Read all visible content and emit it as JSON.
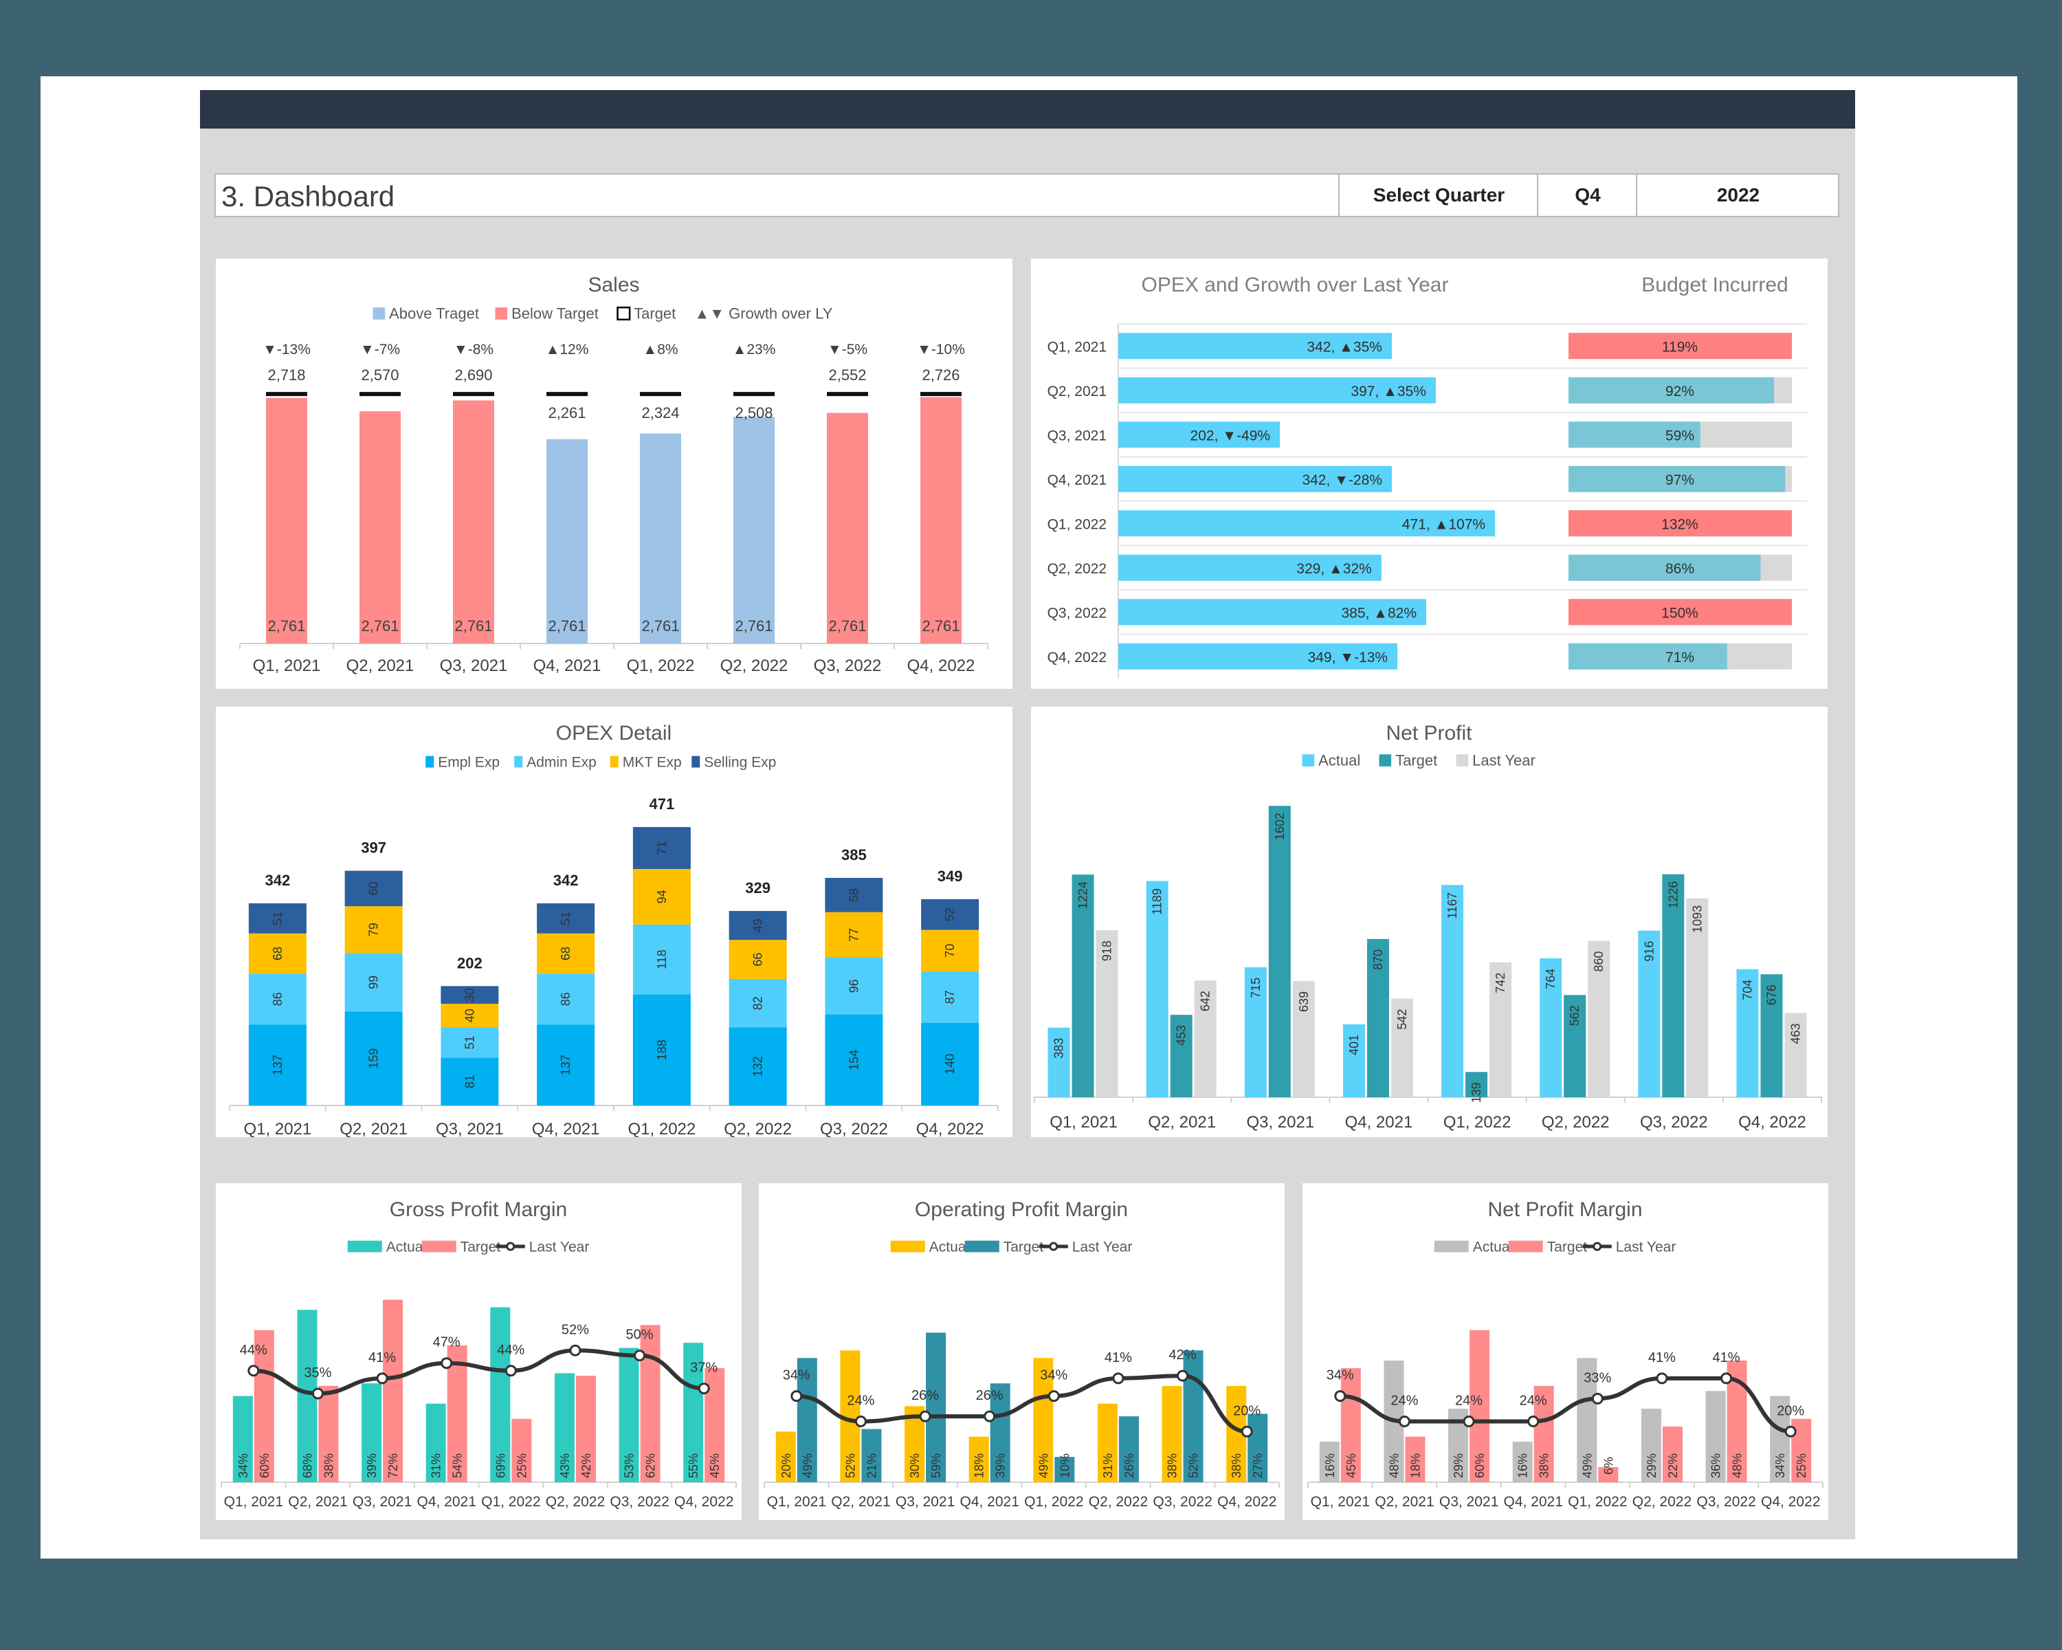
{
  "header": {
    "title": "3. Dashboard",
    "select_label": "Select Quarter",
    "quarter": "Q4",
    "year": "2022"
  },
  "quarters": [
    "Q1, 2021",
    "Q2, 2021",
    "Q3, 2021",
    "Q4, 2021",
    "Q1, 2022",
    "Q2, 2022",
    "Q3, 2022",
    "Q4, 2022"
  ],
  "colors": {
    "above": "#9dc3e6",
    "below": "#ff8b8b",
    "opex_bar": "#5ad2fa",
    "budget_ok": "#79c7d6",
    "budget_over": "#ff8080",
    "budget_bg": "#d9d9d9",
    "empl": "#00b0f0",
    "admin": "#4fcefb",
    "mkt": "#ffc000",
    "selling": "#2c5f9e",
    "np_actual": "#5ad2fa",
    "np_target": "#2f9fae",
    "np_last": "#d9d9d9",
    "gpm_actual": "#2fcbc0",
    "margin_target": "#ff8b8b",
    "opm_actual": "#ffc000",
    "opm_target": "#2f91a6",
    "npm_actual": "#bfbfbf",
    "line": "#333333"
  },
  "chart_data": [
    {
      "id": "sales",
      "type": "bar",
      "title": "Sales",
      "legend": [
        "Above Traget",
        "Below Target",
        "Target",
        "▲▼ Growth over LY"
      ],
      "values": [
        2718,
        2570,
        2690,
        2261,
        2324,
        2508,
        2552,
        2726
      ],
      "targets": [
        2761,
        2761,
        2761,
        2761,
        2761,
        2761,
        2761,
        2761
      ],
      "value_labels": [
        "2,718",
        "2,570",
        "2,690",
        "2,261",
        "2,324",
        "2,508",
        "2,552",
        "2,726"
      ],
      "target_labels": [
        "2,761",
        "2,761",
        "2,761",
        "2,761",
        "2,761",
        "2,761",
        "2,761",
        "2,761"
      ],
      "growth": [
        "▼-13%",
        "▼-7%",
        "▼-8%",
        "▲12%",
        "▲8%",
        "▲23%",
        "▼-5%",
        "▼-10%"
      ]
    },
    {
      "id": "opex_growth",
      "type": "bar",
      "orientation": "horizontal",
      "title": "OPEX and Growth over Last Year",
      "values": [
        342,
        397,
        202,
        342,
        471,
        329,
        385,
        349
      ],
      "labels": [
        "342, ▲35%",
        "397, ▲35%",
        "202, ▼-49%",
        "342, ▼-28%",
        "471, ▲107%",
        "329, ▲32%",
        "385, ▲82%",
        "349, ▼-13%"
      ]
    },
    {
      "id": "budget",
      "type": "bar",
      "orientation": "horizontal",
      "title": "Budget Incurred",
      "values": [
        119,
        92,
        59,
        97,
        132,
        86,
        150,
        71
      ],
      "labels": [
        "119%",
        "92%",
        "59%",
        "97%",
        "132%",
        "86%",
        "150%",
        "71%"
      ]
    },
    {
      "id": "opex_detail",
      "type": "bar",
      "stacked": true,
      "title": "OPEX Detail",
      "series": [
        {
          "name": "Empl Exp",
          "values": [
            137,
            159,
            81,
            137,
            188,
            132,
            154,
            140
          ]
        },
        {
          "name": "Admin Exp",
          "values": [
            86,
            99,
            51,
            86,
            118,
            82,
            96,
            87
          ]
        },
        {
          "name": "MKT Exp",
          "values": [
            68,
            79,
            40,
            68,
            94,
            66,
            77,
            70
          ]
        },
        {
          "name": "Selling Exp",
          "values": [
            51,
            60,
            30,
            51,
            71,
            49,
            58,
            52
          ]
        }
      ],
      "totals": [
        342,
        397,
        202,
        342,
        471,
        329,
        385,
        349
      ]
    },
    {
      "id": "net_profit",
      "type": "bar",
      "title": "Net Profit",
      "series": [
        {
          "name": "Actual",
          "values": [
            383,
            1189,
            715,
            401,
            1167,
            764,
            916,
            704
          ]
        },
        {
          "name": "Target",
          "values": [
            1224,
            453,
            1602,
            870,
            139,
            562,
            1226,
            676
          ]
        },
        {
          "name": "Last Year",
          "values": [
            918,
            642,
            639,
            542,
            742,
            860,
            1093,
            463
          ]
        }
      ]
    },
    {
      "id": "gpm",
      "type": "bar",
      "title": "Gross Profit Margin",
      "series": [
        {
          "name": "Actual",
          "values": [
            34,
            68,
            39,
            31,
            69,
            43,
            53,
            55
          ]
        },
        {
          "name": "Target",
          "values": [
            60,
            38,
            72,
            54,
            25,
            42,
            62,
            45
          ]
        },
        {
          "name": "Last Year",
          "values": [
            44,
            35,
            41,
            47,
            44,
            52,
            50,
            37
          ]
        }
      ]
    },
    {
      "id": "opm",
      "type": "bar",
      "title": "Operating Profit Margin",
      "series": [
        {
          "name": "Actual",
          "values": [
            20,
            52,
            30,
            18,
            49,
            31,
            38,
            38
          ]
        },
        {
          "name": "Target",
          "values": [
            49,
            21,
            59,
            39,
            10,
            26,
            52,
            27
          ]
        },
        {
          "name": "Last Year",
          "values": [
            34,
            24,
            26,
            26,
            34,
            41,
            42,
            20
          ]
        }
      ]
    },
    {
      "id": "npm",
      "type": "bar",
      "title": "Net Profit Margin",
      "series": [
        {
          "name": "Actual",
          "values": [
            16,
            48,
            29,
            16,
            49,
            29,
            36,
            34
          ]
        },
        {
          "name": "Target",
          "values": [
            45,
            18,
            60,
            38,
            6,
            22,
            48,
            25
          ]
        },
        {
          "name": "Last Year",
          "values": [
            34,
            24,
            24,
            24,
            33,
            41,
            41,
            20
          ]
        }
      ]
    }
  ]
}
